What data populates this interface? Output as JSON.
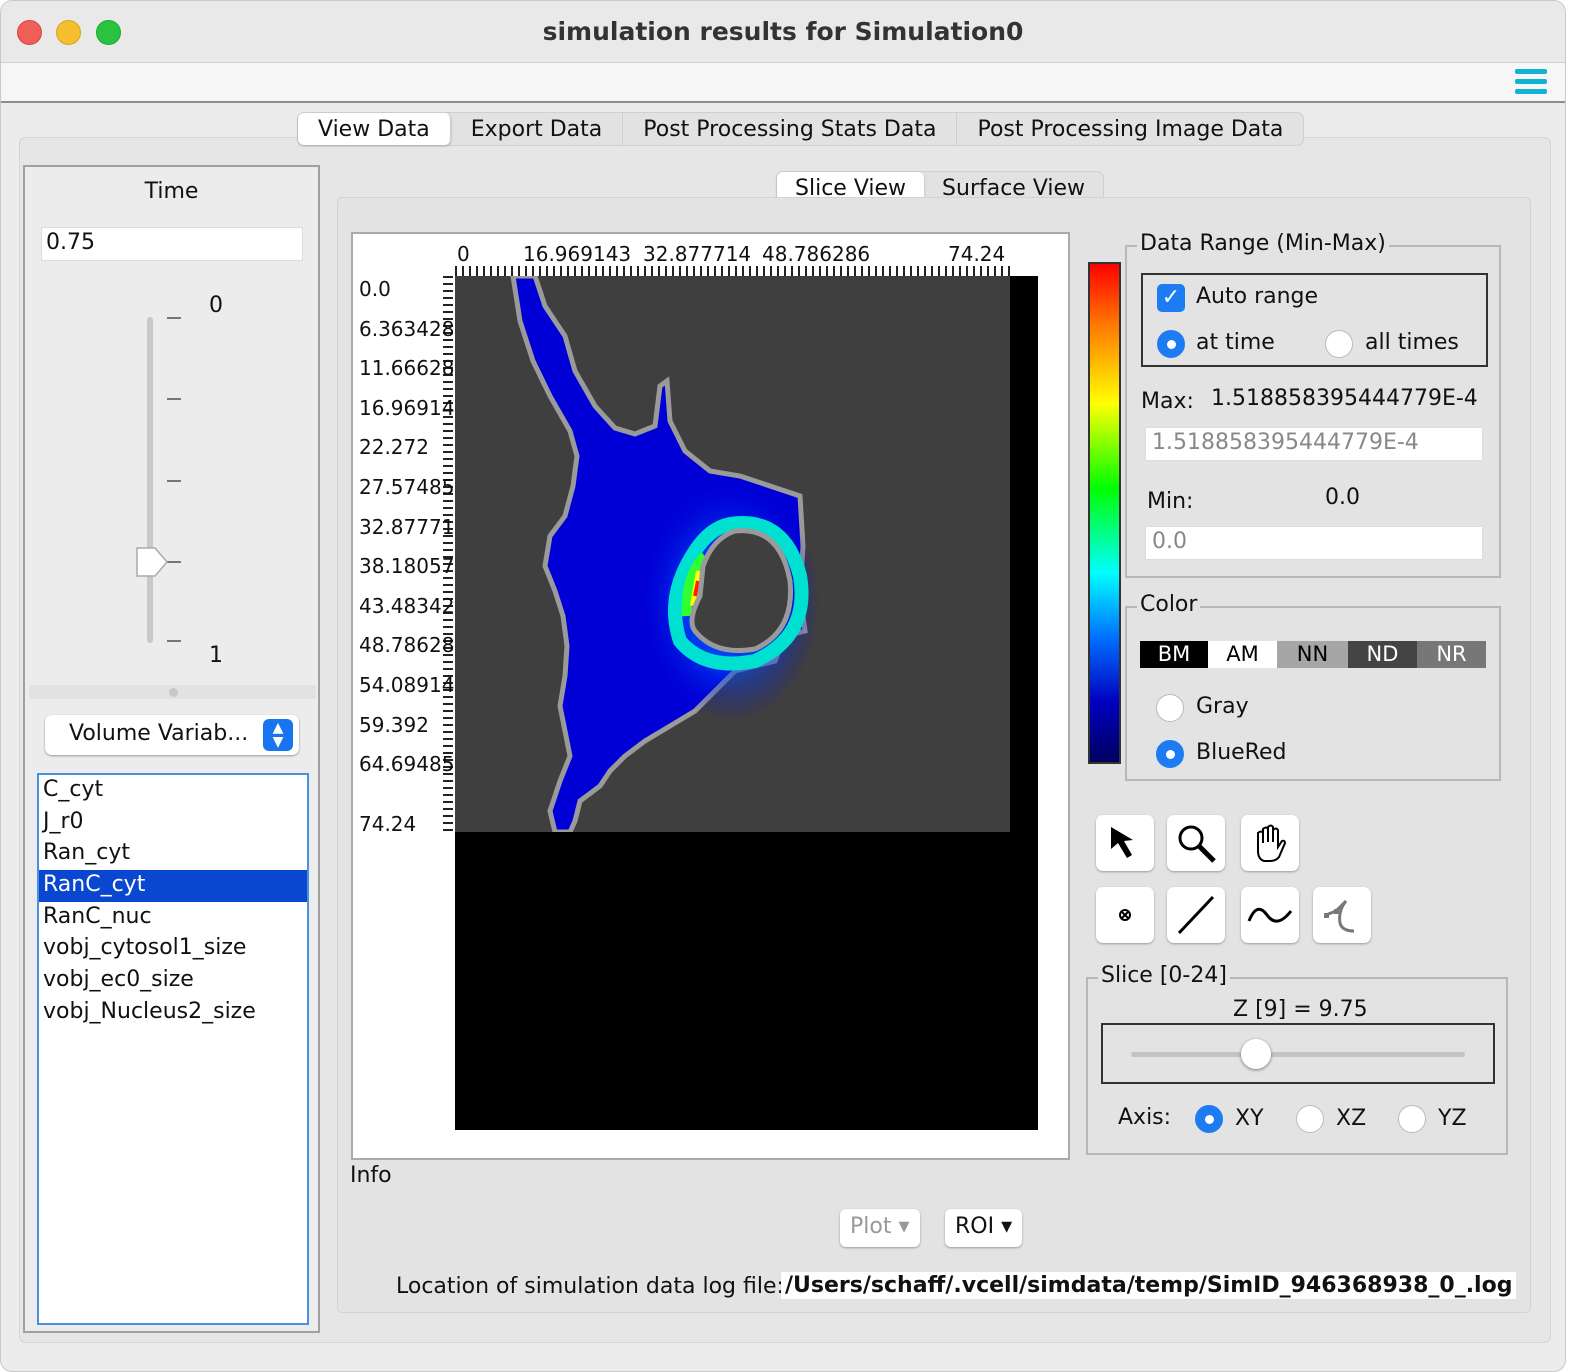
{
  "window": {
    "title": "simulation results for Simulation0"
  },
  "main_tabs": [
    "View Data",
    "Export Data",
    "Post Processing Stats Data",
    "Post Processing Image Data"
  ],
  "main_tab_selected": "View Data",
  "left": {
    "time_label": "Time",
    "time_value": "0.75",
    "slider_min_label": "0",
    "slider_max_label": "1",
    "variable_type": "Volume Variab...",
    "variables": [
      "C_cyt",
      "J_r0",
      "Ran_cyt",
      "RanC_cyt",
      "RanC_nuc",
      "vobj_cytosol1_size",
      "vobj_ec0_size",
      "vobj_Nucleus2_size"
    ],
    "selected_variable": "RanC_cyt"
  },
  "view_tabs": [
    "Slice View",
    "Surface View"
  ],
  "view_tab_selected": "Slice View",
  "image": {
    "x_ticks": [
      "0",
      "16.969143",
      "32.877714",
      "48.786286",
      "74.24"
    ],
    "y_ticks": [
      "0.0",
      "6.363428",
      "11.66628",
      "16.96914",
      "22.272",
      "27.57485",
      "32.87771",
      "38.18057",
      "43.48342",
      "48.78628",
      "54.08914",
      "59.392",
      "64.69485",
      "74.24"
    ]
  },
  "info_label": "Info",
  "data_range": {
    "legend": "Data Range (Min-Max)",
    "auto_range_label": "Auto range",
    "auto_range_checked": true,
    "at_time_label": "at time",
    "all_times_label": "all times",
    "selected_mode": "at time",
    "max_label": "Max:",
    "max_value": "1.518858395444779E-4",
    "max_field": "1.518858395444779E-4",
    "min_label": "Min:",
    "min_value": "0.0",
    "min_field": "0.0"
  },
  "color": {
    "legend": "Color",
    "buttons": [
      "BM",
      "AM",
      "NN",
      "ND",
      "NR"
    ],
    "gray_label": "Gray",
    "bluered_label": "BlueRed",
    "selected": "BlueRed",
    "colorbar_colors": [
      "#ff0000",
      "#ffff00",
      "#00ff00",
      "#00ffff",
      "#0000c0",
      "#000060"
    ]
  },
  "tools": [
    "pointer-icon",
    "zoom-icon",
    "pan-icon",
    "point-icon",
    "line-icon",
    "curve-icon",
    "polyline-icon"
  ],
  "slice": {
    "legend": "Slice [0-24]",
    "z_label": "Z [9] = 9.75",
    "slider_index": 9,
    "slider_max": 24,
    "axis_label": "Axis:",
    "axes": [
      "XY",
      "XZ",
      "YZ"
    ],
    "axis_selected": "XY"
  },
  "bottom": {
    "plot_label": "Plot",
    "roi_label": "ROI",
    "log_location_label": "Location of simulation data log file:",
    "log_path": "/Users/schaff/.vcell/simdata/temp/SimID_946368938_0_.log"
  }
}
